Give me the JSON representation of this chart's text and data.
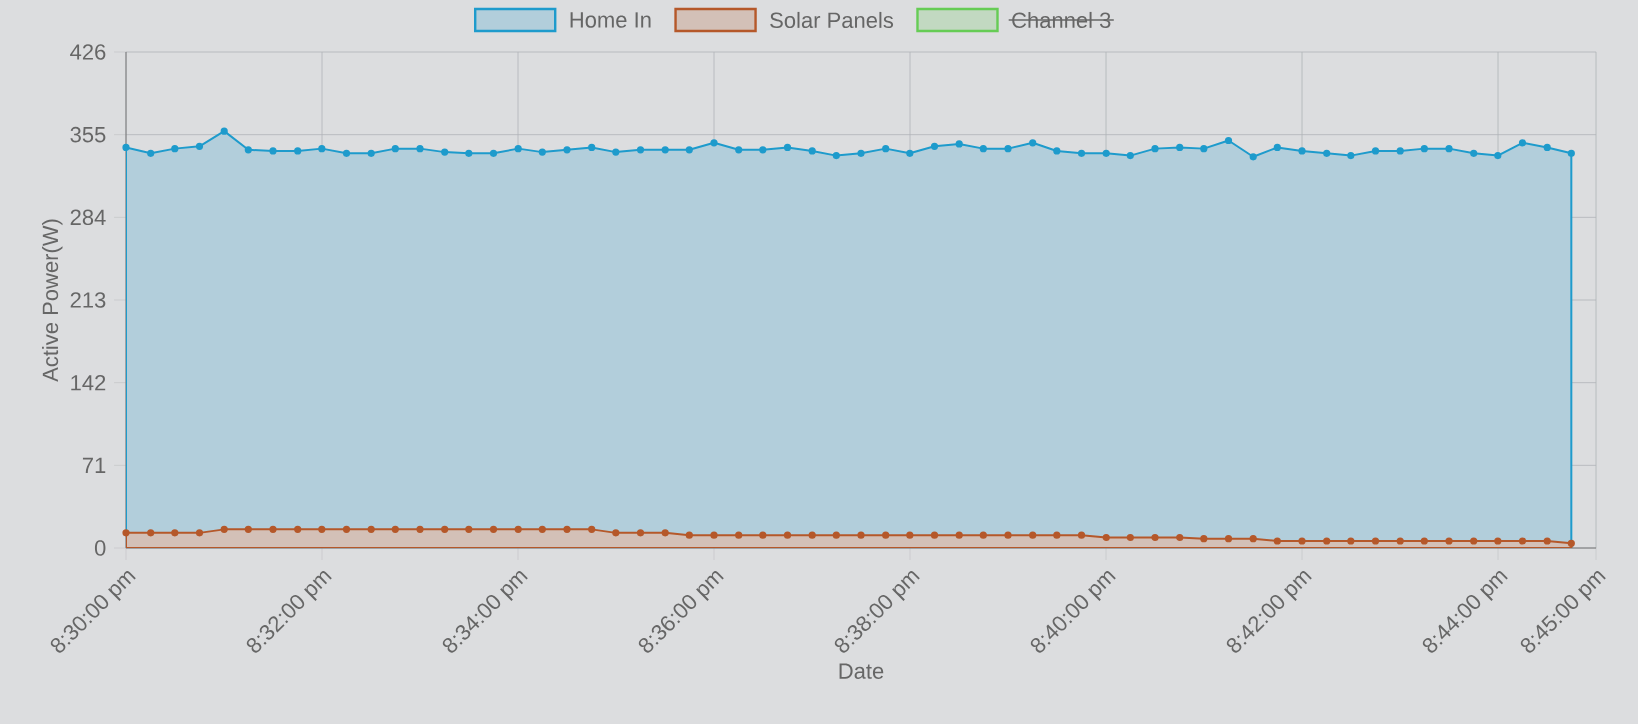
{
  "chart_data": {
    "type": "area",
    "xlabel": "Date",
    "ylabel": "Active Power(W)",
    "x": [
      20.5,
      20.5042,
      20.5083,
      20.5125,
      20.5167,
      20.5208,
      20.525,
      20.5292,
      20.5333,
      20.5375,
      20.5417,
      20.5458,
      20.55,
      20.5542,
      20.5583,
      20.5625,
      20.5667,
      20.5708,
      20.575,
      20.5792,
      20.5833,
      20.5875,
      20.5917,
      20.5958,
      20.6,
      20.6042,
      20.6083,
      20.6125,
      20.6167,
      20.6208,
      20.625,
      20.6292,
      20.6333,
      20.6375,
      20.6417,
      20.6458,
      20.65,
      20.6542,
      20.6583,
      20.6625,
      20.6667,
      20.6708,
      20.675,
      20.6792,
      20.6833,
      20.6875,
      20.6917,
      20.6958,
      20.7,
      20.7042,
      20.7083,
      20.7125,
      20.7167,
      20.7208,
      20.725,
      20.7292,
      20.7333,
      20.7375,
      20.7417,
      20.7458
    ],
    "series": [
      {
        "name": "Home In",
        "color": "#1e9bcc",
        "values": [
          344,
          339,
          343,
          345,
          358,
          342,
          341,
          341,
          343,
          339,
          339,
          343,
          343,
          340,
          339,
          339,
          343,
          340,
          342,
          344,
          340,
          342,
          342,
          342,
          348,
          342,
          342,
          344,
          341,
          337,
          339,
          343,
          339,
          345,
          347,
          343,
          343,
          348,
          341,
          339,
          339,
          337,
          343,
          344,
          343,
          350,
          336,
          344,
          341,
          339,
          337,
          341,
          341,
          343,
          343,
          339,
          337,
          348,
          344,
          339
        ]
      },
      {
        "name": "Solar Panels",
        "color": "#b5582a",
        "values": [
          13,
          13,
          13,
          13,
          16,
          16,
          16,
          16,
          16,
          16,
          16,
          16,
          16,
          16,
          16,
          16,
          16,
          16,
          16,
          16,
          13,
          13,
          13,
          11,
          11,
          11,
          11,
          11,
          11,
          11,
          11,
          11,
          11,
          11,
          11,
          11,
          11,
          11,
          11,
          11,
          9,
          9,
          9,
          9,
          8,
          8,
          8,
          6,
          6,
          6,
          6,
          6,
          6,
          6,
          6,
          6,
          6,
          6,
          6,
          4
        ]
      },
      {
        "name": "Channel 3",
        "color": "#66cc55",
        "values": [
          null,
          null,
          null,
          null,
          null,
          null,
          null,
          null,
          null,
          null,
          null,
          null,
          null,
          null,
          null,
          null,
          null,
          null,
          null,
          null,
          null,
          null,
          null,
          null,
          null,
          null,
          null,
          null,
          null,
          null,
          null,
          null,
          null,
          null,
          null,
          null,
          null,
          null,
          null,
          null,
          null,
          null,
          null,
          null,
          null,
          null,
          null,
          null,
          null,
          null,
          null,
          null,
          null,
          null,
          null,
          null,
          null,
          null,
          null,
          null
        ]
      }
    ],
    "xlim": [
      20.5,
      20.75
    ],
    "xticks": [
      {
        "value": 20.5,
        "label": "8:30:00 pm"
      },
      {
        "value": 20.533333,
        "label": "8:32:00 pm"
      },
      {
        "value": 20.566667,
        "label": "8:34:00 pm"
      },
      {
        "value": 20.6,
        "label": "8:36:00 pm"
      },
      {
        "value": 20.633333,
        "label": "8:38:00 pm"
      },
      {
        "value": 20.666667,
        "label": "8:40:00 pm"
      },
      {
        "value": 20.7,
        "label": "8:42:00 pm"
      },
      {
        "value": 20.733333,
        "label": "8:44:00 pm"
      },
      {
        "value": 20.75,
        "label": "8:45:00 pm"
      }
    ],
    "ylim": [
      0,
      426
    ],
    "yticks": [
      0,
      71,
      142,
      213,
      284,
      355,
      426
    ],
    "grid": true,
    "legend": "top",
    "marker": "circle"
  }
}
